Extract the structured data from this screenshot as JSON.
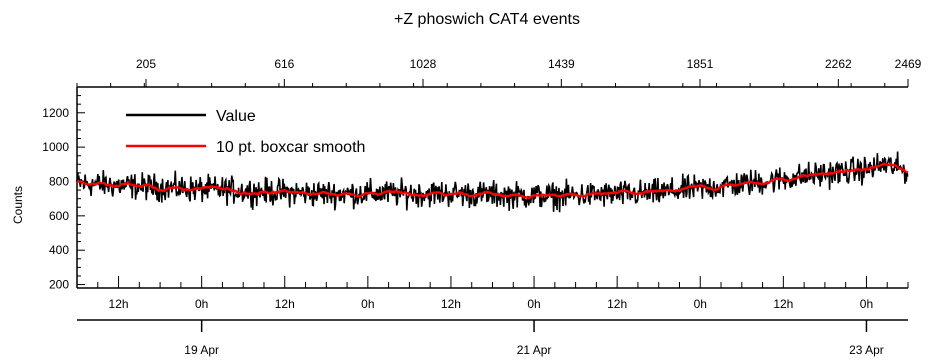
{
  "chart_data": {
    "type": "line",
    "title": "+Z phoswich CAT4 events",
    "ylabel": "Counts",
    "ylim": [
      180,
      1350
    ],
    "yticks": [
      200,
      400,
      600,
      800,
      1000,
      1200
    ],
    "x_range_hours": [
      6.0,
      126.0
    ],
    "bottom_time_ticks": [
      {
        "label": "12h",
        "hour": 12
      },
      {
        "label": "0h",
        "hour": 24
      },
      {
        "label": "12h",
        "hour": 36
      },
      {
        "label": "0h",
        "hour": 48
      },
      {
        "label": "12h",
        "hour": 60
      },
      {
        "label": "0h",
        "hour": 72
      },
      {
        "label": "12h",
        "hour": 84
      },
      {
        "label": "0h",
        "hour": 96
      },
      {
        "label": "12h",
        "hour": 108
      },
      {
        "label": "0h",
        "hour": 120
      },
      {
        "label": "12h",
        "hour": 132
      },
      {
        "label": "0h",
        "hour": 144
      }
    ],
    "date_ticks": [
      {
        "label": "19 Apr",
        "hour": 24
      },
      {
        "label": "21 Apr",
        "hour": 72
      },
      {
        "label": "23 Apr",
        "hour": 120
      }
    ],
    "top_index_ticks": [
      "205",
      "616",
      "1028",
      "1439",
      "1851",
      "2262",
      "2469"
    ],
    "top_index_range": [
      0,
      2469
    ],
    "legend": {
      "placement": "top-left"
    },
    "series": [
      {
        "name": "Value",
        "color": "#000000",
        "profile": {
          "x_index": [
            0,
            300,
            700,
            1100,
            1400,
            1700,
            2000,
            2200,
            2350,
            2400,
            2469
          ],
          "y": [
            790,
            760,
            730,
            730,
            715,
            730,
            790,
            840,
            870,
            900,
            860
          ]
        },
        "noise_amplitude": 38
      },
      {
        "name": "10 pt. boxcar smooth",
        "color": "#ff0000",
        "profile": {
          "x_index": [
            0,
            300,
            700,
            1100,
            1400,
            1700,
            2000,
            2200,
            2350,
            2400,
            2469
          ],
          "y": [
            790,
            760,
            730,
            730,
            715,
            730,
            790,
            840,
            870,
            900,
            860
          ]
        },
        "smoothing_points": 10
      }
    ]
  }
}
